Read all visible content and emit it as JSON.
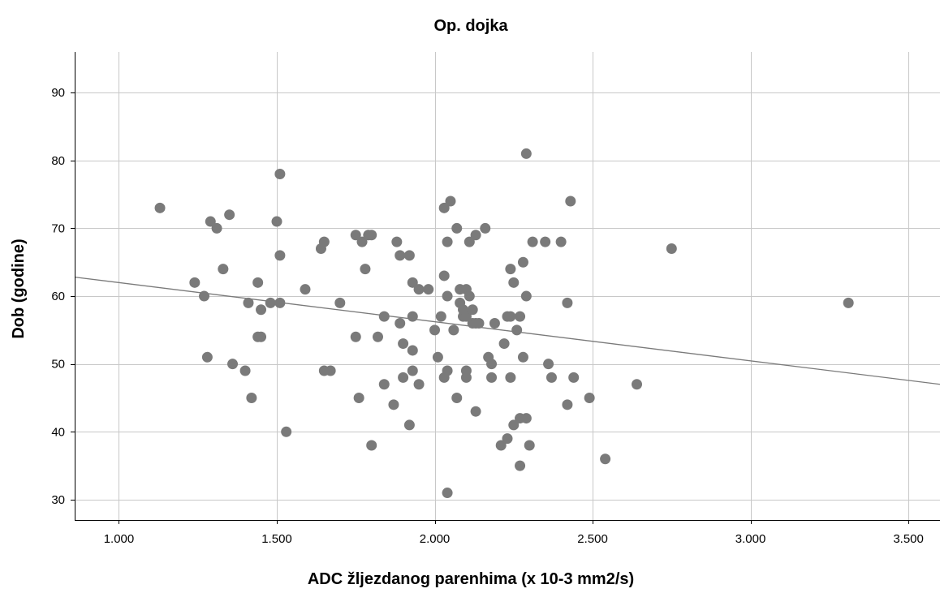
{
  "chart_data": {
    "type": "scatter",
    "title": "Op. dojka",
    "xlabel": "ADC žljezdanog parenhima (x 10-3 mm2/s)",
    "ylabel": "Dob (godine)",
    "xlim": [
      0.86,
      3.6
    ],
    "ylim": [
      27,
      96
    ],
    "x_ticks": [
      1.0,
      1.5,
      2.0,
      2.5,
      3.0,
      3.5
    ],
    "x_tick_labels": [
      "1.000",
      "1.500",
      "2.000",
      "2.500",
      "3.000",
      "3.500"
    ],
    "y_ticks": [
      30,
      40,
      50,
      60,
      70,
      80,
      90
    ],
    "y_tick_labels": [
      "30",
      "40",
      "50",
      "60",
      "70",
      "80",
      "90"
    ],
    "grid": true,
    "legend": "none",
    "marker_color": "#7a7a7a",
    "line_color": "#7a7a7a",
    "fit_line": {
      "x": [
        0.86,
        3.6
      ],
      "y": [
        62.8,
        47.0
      ]
    },
    "points": [
      [
        1.13,
        73
      ],
      [
        1.24,
        62
      ],
      [
        1.27,
        60
      ],
      [
        1.28,
        51
      ],
      [
        1.29,
        71
      ],
      [
        1.31,
        70
      ],
      [
        1.33,
        64
      ],
      [
        1.35,
        72
      ],
      [
        1.36,
        50
      ],
      [
        1.4,
        49
      ],
      [
        1.41,
        59
      ],
      [
        1.42,
        45
      ],
      [
        1.44,
        54
      ],
      [
        1.44,
        62
      ],
      [
        1.45,
        58
      ],
      [
        1.45,
        54
      ],
      [
        1.48,
        59
      ],
      [
        1.5,
        71
      ],
      [
        1.51,
        59
      ],
      [
        1.51,
        78
      ],
      [
        1.51,
        66
      ],
      [
        1.53,
        40
      ],
      [
        1.59,
        61
      ],
      [
        1.64,
        67
      ],
      [
        1.65,
        68
      ],
      [
        1.65,
        49
      ],
      [
        1.67,
        49
      ],
      [
        1.7,
        59
      ],
      [
        1.75,
        54
      ],
      [
        1.75,
        69
      ],
      [
        1.76,
        45
      ],
      [
        1.77,
        68
      ],
      [
        1.78,
        64
      ],
      [
        1.79,
        69
      ],
      [
        1.8,
        38
      ],
      [
        1.8,
        69
      ],
      [
        1.82,
        54
      ],
      [
        1.84,
        47
      ],
      [
        1.84,
        57
      ],
      [
        1.87,
        44
      ],
      [
        1.88,
        68
      ],
      [
        1.89,
        66
      ],
      [
        1.89,
        56
      ],
      [
        1.9,
        48
      ],
      [
        1.9,
        53
      ],
      [
        1.92,
        66
      ],
      [
        1.92,
        41
      ],
      [
        1.93,
        52
      ],
      [
        1.93,
        49
      ],
      [
        1.93,
        57
      ],
      [
        1.93,
        62
      ],
      [
        1.95,
        61
      ],
      [
        1.95,
        47
      ],
      [
        1.98,
        61
      ],
      [
        2.0,
        55
      ],
      [
        2.01,
        51
      ],
      [
        2.02,
        57
      ],
      [
        2.03,
        48
      ],
      [
        2.03,
        63
      ],
      [
        2.03,
        73
      ],
      [
        2.04,
        60
      ],
      [
        2.04,
        49
      ],
      [
        2.04,
        68
      ],
      [
        2.04,
        31
      ],
      [
        2.05,
        74
      ],
      [
        2.06,
        55
      ],
      [
        2.07,
        70
      ],
      [
        2.07,
        45
      ],
      [
        2.08,
        61
      ],
      [
        2.08,
        59
      ],
      [
        2.09,
        57
      ],
      [
        2.09,
        58
      ],
      [
        2.1,
        61
      ],
      [
        2.1,
        48
      ],
      [
        2.1,
        49
      ],
      [
        2.1,
        57
      ],
      [
        2.11,
        60
      ],
      [
        2.11,
        68
      ],
      [
        2.12,
        58
      ],
      [
        2.12,
        56
      ],
      [
        2.13,
        69
      ],
      [
        2.13,
        56
      ],
      [
        2.14,
        56
      ],
      [
        2.13,
        43
      ],
      [
        2.16,
        70
      ],
      [
        2.17,
        51
      ],
      [
        2.18,
        48
      ],
      [
        2.19,
        56
      ],
      [
        2.18,
        50
      ],
      [
        2.21,
        38
      ],
      [
        2.22,
        53
      ],
      [
        2.23,
        39
      ],
      [
        2.23,
        57
      ],
      [
        2.24,
        64
      ],
      [
        2.24,
        48
      ],
      [
        2.24,
        57
      ],
      [
        2.25,
        62
      ],
      [
        2.25,
        41
      ],
      [
        2.26,
        55
      ],
      [
        2.27,
        57
      ],
      [
        2.27,
        42
      ],
      [
        2.27,
        35
      ],
      [
        2.28,
        51
      ],
      [
        2.28,
        65
      ],
      [
        2.29,
        60
      ],
      [
        2.29,
        42
      ],
      [
        2.3,
        38
      ],
      [
        2.29,
        81
      ],
      [
        2.31,
        68
      ],
      [
        2.35,
        68
      ],
      [
        2.36,
        50
      ],
      [
        2.37,
        48
      ],
      [
        2.4,
        68
      ],
      [
        2.42,
        59
      ],
      [
        2.42,
        44
      ],
      [
        2.43,
        74
      ],
      [
        2.44,
        48
      ],
      [
        2.49,
        45
      ],
      [
        2.54,
        36
      ],
      [
        2.64,
        47
      ],
      [
        2.75,
        67
      ],
      [
        3.31,
        59
      ]
    ]
  }
}
